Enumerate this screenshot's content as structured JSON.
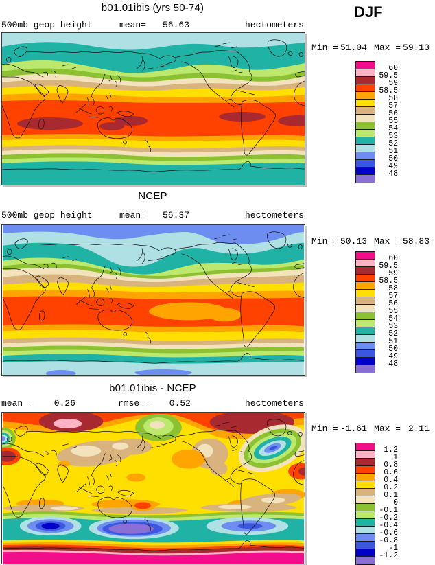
{
  "header": {
    "season_label": "DJF"
  },
  "panels": [
    {
      "title": "b01.01ibis (yrs 50-74)",
      "row": {
        "left": "500mb geop height",
        "stat1_label": "mean=",
        "stat1_value": "56.63",
        "units": "hectometers"
      },
      "legend": {
        "min_label": "Min =",
        "min_value": "51.04",
        "max_label": "Max =",
        "max_value": "59.13",
        "ticks": [
          "60",
          "59.5",
          "59",
          "58.5",
          "58",
          "57",
          "56",
          "55",
          "54",
          "53",
          "52",
          "51",
          "50",
          "49",
          "48"
        ]
      }
    },
    {
      "title": "NCEP",
      "row": {
        "left": "500mb geop height",
        "stat1_label": "mean=",
        "stat1_value": "56.37",
        "units": "hectometers"
      },
      "legend": {
        "min_label": "Min =",
        "min_value": "50.13",
        "max_label": "Max =",
        "max_value": "58.83",
        "ticks": [
          "60",
          "59.5",
          "59",
          "58.5",
          "58",
          "57",
          "56",
          "55",
          "54",
          "53",
          "52",
          "51",
          "50",
          "49",
          "48"
        ]
      }
    },
    {
      "title": "b01.01ibis - NCEP",
      "row": {
        "stat1_label": "mean =",
        "stat1_value": "0.26",
        "stat2_label": "rmse =",
        "stat2_value": "0.52",
        "units": "hectometers"
      },
      "legend": {
        "min_label": "Min =",
        "min_value": "-1.61",
        "max_label": "Max =",
        "max_value": "2.11",
        "ticks": [
          "1.2",
          "1",
          "0.8",
          "0.6",
          "0.4",
          "0.2",
          "0.1",
          "0",
          "-0.1",
          "-0.2",
          "-0.4",
          "-0.6",
          "-0.8",
          "-1",
          "-1.2"
        ]
      }
    }
  ],
  "palette": {
    "colors": [
      "#F20D8B",
      "#FFB3C4",
      "#A8292F",
      "#FF4200",
      "#FFA400",
      "#FFDF00",
      "#D9B37E",
      "#F2E3BC",
      "#8CC232",
      "#BCE86E",
      "#1FB2A5",
      "#AEE0E4",
      "#6D8EF0",
      "#3B57E0",
      "#0000C8",
      "#8A70D6"
    ],
    "names": [
      "magenta",
      "pink",
      "dark-red",
      "orange-red",
      "orange",
      "yellow",
      "tan",
      "cream",
      "olive-green",
      "light-green",
      "teal",
      "pale-blue",
      "cornflower-blue",
      "royal-blue",
      "dark-blue",
      "purple"
    ]
  },
  "chart_data": [
    {
      "type": "heatmap",
      "subtype": "filled-contour global map (equirectangular, lon 0-360)",
      "title": "b01.01ibis (yrs 50-74)",
      "variable": "500mb geop height",
      "units": "hectometers",
      "season": "DJF",
      "mean": 56.63,
      "min": 51.04,
      "max": 59.13,
      "contour_levels": [
        48,
        49,
        50,
        51,
        52,
        53,
        54,
        55,
        56,
        57,
        58,
        58.5,
        59,
        59.5,
        60
      ],
      "legend_position": "right",
      "description": "Zonal bands: pale blue/teal at Arctic, greens and tans midlatitude, broad orange-red tropical belt with dark-red maxima over S Indian Ocean, Australia, NW Pacific, Caribbean and S Atlantic; teal over Antarctic."
    },
    {
      "type": "heatmap",
      "subtype": "filled-contour global map (equirectangular, lon 0-360)",
      "title": "NCEP",
      "variable": "500mb geop height",
      "units": "hectometers",
      "season": "DJF",
      "mean": 56.37,
      "min": 50.13,
      "max": 58.83,
      "contour_levels": [
        48,
        49,
        50,
        51,
        52,
        53,
        54,
        55,
        56,
        57,
        58,
        58.5,
        59,
        59.5,
        60
      ],
      "legend_position": "right",
      "description": "Like model panel but cornflower-blue polar caps at both poles, deeper pale-blue trough over Bering/East Siberia, orange tongue splitting the tropical orange-red belt over central/east Pacific, no dark-red maxima."
    },
    {
      "type": "heatmap",
      "subtype": "filled-contour global difference map (equirectangular, lon 0-360)",
      "title": "b01.01ibis - NCEP",
      "variable": "500mb geop height difference",
      "units": "hectometers",
      "season": "DJF",
      "mean": 0.26,
      "rmse": 0.52,
      "min": -1.61,
      "max": 2.11,
      "contour_levels": [
        -1.2,
        -1,
        -0.8,
        -0.6,
        -0.4,
        -0.2,
        -0.1,
        0,
        0.1,
        0.2,
        0.4,
        0.6,
        0.8,
        1,
        1.2
      ],
      "legend_position": "right",
      "description": "Mostly yellow (+0.2 to +0.4); dark-red positive anomalies over Arctic Siberia (pink core) and Canada/Greenland; green/blue negative centers over Alaska, NE Atlantic and Southern Ocean (purple/dark-blue cores); magenta positive ring over Antarctica."
    }
  ]
}
